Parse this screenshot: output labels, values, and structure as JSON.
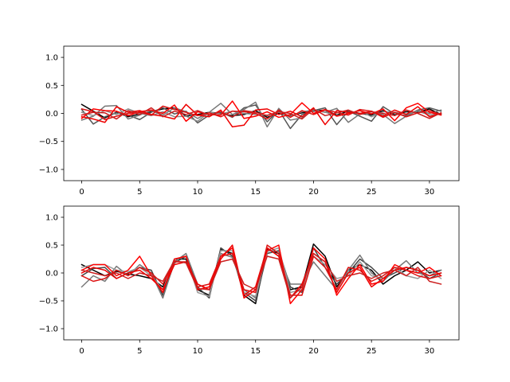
{
  "chart_data": [
    {
      "type": "line",
      "title": "",
      "xlabel": "",
      "ylabel": "",
      "xlim": [
        -1.55,
        32.55
      ],
      "ylim": [
        -1.2,
        1.2
      ],
      "x_ticks": [
        0,
        5,
        10,
        15,
        20,
        25,
        30
      ],
      "y_ticks": [
        -1.0,
        -0.5,
        0.0,
        0.5,
        1.0
      ],
      "x_tick_labels": [
        "0",
        "5",
        "10",
        "15",
        "20",
        "25",
        "30"
      ],
      "y_tick_labels": [
        "−1.0",
        "−0.5",
        "0.0",
        "0.5",
        "1.0"
      ],
      "grid": false,
      "series": [
        {
          "color": "#000000",
          "values": [
            0.16,
            0.04,
            -0.08,
            0.02,
            -0.06,
            -0.01,
            0.03,
            0.08,
            0.1,
            -0.05,
            -0.02,
            0.02,
            0.0,
            -0.04,
            -0.02,
            0.05,
            -0.07,
            0.0,
            -0.04,
            0.01,
            0.04,
            0.06,
            -0.03,
            0.04,
            0.0,
            -0.03,
            0.05,
            -0.02,
            0.03,
            0.02,
            0.08,
            -0.02
          ]
        },
        {
          "color": "#555555",
          "values": [
            0.07,
            -0.19,
            -0.06,
            0.01,
            -0.03,
            -0.11,
            0.02,
            0.1,
            -0.01,
            0.04,
            -0.17,
            -0.03,
            0.02,
            -0.07,
            0.1,
            0.15,
            -0.15,
            0.06,
            -0.27,
            -0.02,
            0.05,
            0.1,
            -0.2,
            0.04,
            -0.05,
            -0.14,
            0.12,
            -0.01,
            -0.04,
            0.06,
            0.1,
            0.04
          ]
        },
        {
          "color": "#777777",
          "values": [
            -0.12,
            -0.05,
            0.13,
            0.14,
            -0.1,
            -0.03,
            0.05,
            -0.03,
            0.1,
            0.03,
            -0.09,
            0.02,
            0.18,
            -0.02,
            0.07,
            0.2,
            -0.24,
            0.09,
            -0.12,
            -0.08,
            0.06,
            0.02,
            0.09,
            -0.16,
            -0.01,
            0.0,
            -0.02,
            -0.18,
            -0.05,
            0.05,
            0.0,
            0.06
          ]
        },
        {
          "color": "#8a8a8a",
          "values": [
            0.02,
            -0.04,
            0.05,
            -0.02,
            0.08,
            0.0,
            -0.04,
            0.03,
            -0.06,
            -0.05,
            -0.14,
            0.02,
            -0.01,
            0.04,
            0.0,
            -0.02,
            -0.03,
            0.02,
            -0.05,
            0.03,
            0.06,
            0.02,
            -0.04,
            0.0,
            0.05,
            -0.06,
            0.03,
            0.02,
            -0.01,
            0.04,
            -0.03,
            0.0
          ]
        },
        {
          "color": "#ff0000",
          "values": [
            -0.09,
            0.08,
            0.05,
            0.04,
            -0.04,
            0.03,
            0.06,
            0.0,
            0.15,
            -0.14,
            0.03,
            -0.02,
            -0.03,
            0.22,
            -0.09,
            -0.05,
            0.03,
            -0.07,
            -0.02,
            0.19,
            0.0,
            0.07,
            -0.05,
            0.0,
            0.05,
            -0.01,
            0.08,
            -0.13,
            0.1,
            0.18,
            0.02,
            -0.03
          ]
        },
        {
          "color": "#ee0000",
          "values": [
            -0.06,
            -0.1,
            -0.16,
            0.12,
            0.02,
            0.05,
            -0.02,
            -0.05,
            -0.1,
            0.16,
            -0.03,
            -0.06,
            0.06,
            -0.24,
            -0.21,
            0.06,
            0.08,
            -0.02,
            0.04,
            -0.06,
            0.1,
            -0.2,
            0.05,
            0.02,
            0.0,
            0.04,
            -0.05,
            0.06,
            -0.02,
            0.12,
            -0.06,
            0.0
          ]
        },
        {
          "color": "#dd1111",
          "values": [
            0.08,
            0.03,
            -0.11,
            -0.05,
            0.0,
            0.02,
            -0.03,
            0.13,
            0.07,
            0.02,
            -0.04,
            0.01,
            -0.06,
            0.04,
            0.03,
            0.0,
            -0.1,
            0.06,
            -0.07,
            0.05,
            -0.02,
            0.06,
            0.02,
            -0.03,
            0.07,
            0.04,
            -0.07,
            0.02,
            -0.06,
            0.01,
            0.05,
            -0.02
          ]
        },
        {
          "color": "#cc1f1f",
          "values": [
            -0.03,
            0.02,
            0.01,
            -0.1,
            0.05,
            -0.02,
            0.1,
            -0.06,
            0.04,
            -0.02,
            0.05,
            -0.03,
            0.03,
            -0.06,
            0.05,
            0.02,
            -0.04,
            0.03,
            0.0,
            -0.1,
            0.08,
            -0.04,
            0.01,
            0.06,
            -0.02,
            0.03,
            0.0,
            -0.04,
            0.06,
            0.0,
            -0.09,
            0.01
          ]
        }
      ]
    },
    {
      "type": "line",
      "title": "",
      "xlabel": "",
      "ylabel": "",
      "xlim": [
        -1.55,
        32.55
      ],
      "ylim": [
        -1.2,
        1.2
      ],
      "x_ticks": [
        0,
        5,
        10,
        15,
        20,
        25,
        30
      ],
      "y_ticks": [
        -1.0,
        -0.5,
        0.0,
        0.5,
        1.0
      ],
      "x_tick_labels": [
        "0",
        "5",
        "10",
        "15",
        "20",
        "25",
        "30"
      ],
      "y_tick_labels": [
        "−1.0",
        "−0.5",
        "0.0",
        "0.5",
        "1.0"
      ],
      "grid": false,
      "series": [
        {
          "color": "#000000",
          "values": [
            0.15,
            0.05,
            -0.05,
            0.03,
            -0.02,
            -0.05,
            -0.1,
            -0.25,
            0.25,
            0.25,
            -0.3,
            -0.4,
            0.42,
            0.35,
            -0.4,
            -0.55,
            0.42,
            0.35,
            -0.3,
            -0.25,
            0.52,
            0.3,
            -0.25,
            0.05,
            0.15,
            0.05,
            -0.2,
            -0.05,
            0.05,
            0.2,
            0.0,
            0.05
          ]
        },
        {
          "color": "#444444",
          "values": [
            -0.05,
            0.08,
            0.1,
            -0.1,
            0.0,
            0.1,
            0.05,
            -0.4,
            0.18,
            0.3,
            -0.25,
            -0.45,
            0.45,
            0.3,
            -0.35,
            -0.5,
            0.35,
            0.4,
            -0.25,
            -0.35,
            0.45,
            0.1,
            -0.2,
            0.0,
            0.25,
            0.1,
            -0.1,
            0.0,
            0.1,
            0.05,
            -0.1,
            0.0
          ]
        },
        {
          "color": "#777777",
          "values": [
            -0.25,
            -0.05,
            -0.15,
            0.12,
            -0.05,
            0.15,
            0.0,
            -0.45,
            0.2,
            0.35,
            -0.2,
            -0.3,
            0.35,
            0.28,
            -0.3,
            -0.45,
            0.45,
            0.3,
            -0.2,
            -0.2,
            0.2,
            -0.05,
            -0.3,
            0.05,
            0.32,
            0.0,
            -0.15,
            0.05,
            0.22,
            0.0,
            -0.05,
            0.05
          ]
        },
        {
          "color": "#999999",
          "values": [
            0.1,
            0.15,
            0.15,
            0.05,
            0.02,
            0.1,
            -0.05,
            -0.3,
            0.25,
            0.3,
            -0.35,
            -0.42,
            0.4,
            0.4,
            -0.35,
            -0.42,
            0.38,
            0.45,
            -0.35,
            -0.3,
            0.3,
            0.15,
            -0.1,
            -0.05,
            0.2,
            -0.05,
            -0.1,
            0.1,
            -0.05,
            -0.1,
            0.05,
            -0.1
          ]
        },
        {
          "color": "#ff0000",
          "values": [
            0.05,
            0.15,
            0.15,
            -0.05,
            0.05,
            0.3,
            -0.05,
            -0.35,
            0.25,
            0.3,
            -0.3,
            -0.25,
            0.3,
            0.45,
            -0.45,
            -0.3,
            0.4,
            0.5,
            -0.55,
            -0.3,
            0.45,
            0.25,
            -0.4,
            -0.1,
            0.15,
            -0.2,
            -0.15,
            0.15,
            0.05,
            0.0,
            0.1,
            -0.05
          ]
        },
        {
          "color": "#ee0000",
          "values": [
            0.0,
            0.1,
            0.05,
            -0.1,
            0.0,
            0.05,
            -0.1,
            -0.3,
            0.15,
            0.2,
            -0.2,
            -0.3,
            0.25,
            0.5,
            -0.4,
            -0.25,
            0.45,
            0.3,
            -0.45,
            -0.2,
            0.35,
            0.2,
            -0.35,
            0.0,
            0.1,
            -0.25,
            -0.1,
            0.05,
            0.1,
            0.05,
            -0.05,
            0.0
          ]
        },
        {
          "color": "#dd1111",
          "values": [
            -0.05,
            -0.15,
            -0.1,
            0.05,
            -0.05,
            0.1,
            0.0,
            -0.2,
            0.2,
            0.2,
            -0.25,
            -0.2,
            0.3,
            0.35,
            -0.3,
            -0.35,
            0.5,
            0.35,
            -0.4,
            -0.4,
            0.3,
            0.1,
            -0.3,
            0.1,
            0.05,
            -0.15,
            -0.05,
            0.1,
            0.05,
            -0.05,
            -0.1,
            -0.05
          ]
        },
        {
          "color": "#cc1f1f",
          "values": [
            0.05,
            0.0,
            -0.05,
            0.0,
            -0.1,
            0.0,
            -0.05,
            -0.15,
            0.22,
            0.18,
            -0.28,
            -0.3,
            0.2,
            0.25,
            -0.2,
            -0.3,
            0.3,
            0.25,
            -0.45,
            -0.25,
            0.35,
            0.2,
            -0.15,
            -0.05,
            0.0,
            -0.1,
            0.0,
            0.05,
            -0.05,
            0.1,
            -0.15,
            -0.2
          ]
        }
      ]
    }
  ]
}
